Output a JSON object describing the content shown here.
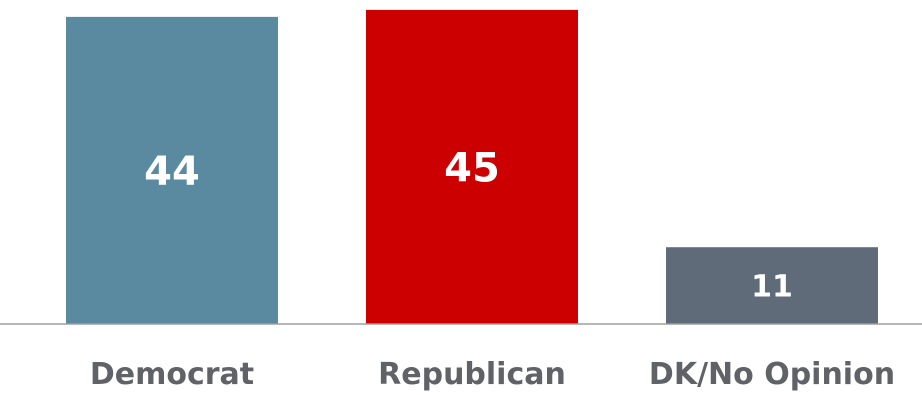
{
  "chart_data": {
    "type": "bar",
    "title": "",
    "xlabel": "",
    "ylabel": "",
    "ylim": [
      0,
      45.7
    ],
    "grid": false,
    "categories": [
      "Democrat",
      "Republican",
      "DK/No Opinion"
    ],
    "values": [
      44,
      45,
      11
    ],
    "value_labels": [
      "44",
      "45",
      "11"
    ],
    "colors": [
      "#5a8aa0",
      "#cc0000",
      "#5f6b78"
    ],
    "axis_color": "#9e9e9e"
  }
}
